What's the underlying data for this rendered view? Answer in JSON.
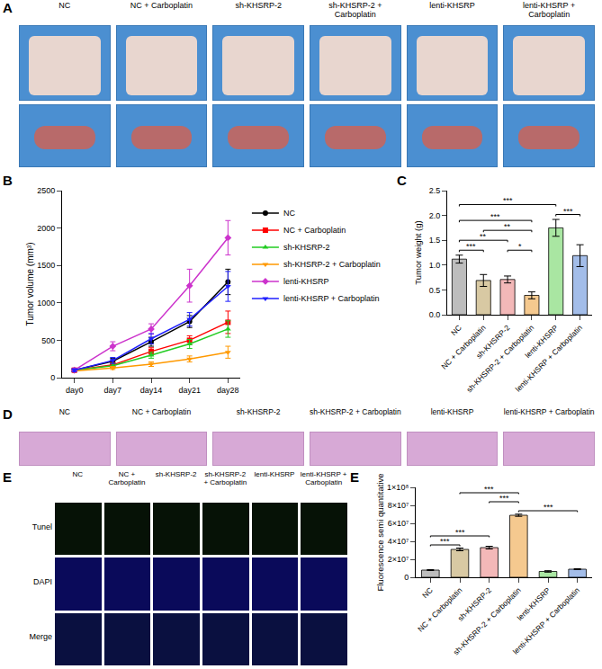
{
  "panel_A": {
    "panel": "A",
    "groups": [
      "NC",
      "NC + Carboplatin",
      "sh-KHSRP-2",
      "sh-KHSRP-2 + Carboplatin",
      "lenti-KHSRP",
      "lenti-KHSRP + Carboplatin"
    ]
  },
  "panel_D": {
    "panel": "D",
    "groups": [
      "NC",
      "NC + Carboplatin",
      "sh-KHSRP-2",
      "sh-KHSRP-2 + Carboplatin",
      "lenti-KHSRP",
      "lenti-KHSRP + Carboplatin"
    ]
  },
  "panel_E_images": {
    "panel": "E",
    "groups": [
      "NC",
      "NC + Carboplatin",
      "sh-KHSRP-2",
      "sh-KHSRP-2 + Carboplatin",
      "lenti-KHSRP",
      "lenti-KHSRP + Carboplatin"
    ],
    "rows": [
      "Tunel",
      "DAPI",
      "Merge"
    ]
  },
  "chart_data": [
    {
      "panel": "B",
      "type": "line",
      "y_label": "Tumor volume (mm³)",
      "categories": [
        "day0",
        "day7",
        "day14",
        "day21",
        "day28"
      ],
      "ylim": [
        0,
        2500
      ],
      "yticks": [
        0,
        500,
        1000,
        1500,
        2000,
        2500
      ],
      "grid": false,
      "legend": "right",
      "series": [
        {
          "name": "NC",
          "color": "#000000",
          "marker": "circle",
          "line_style": "solid",
          "values": [
            100,
            220,
            480,
            750,
            1280
          ],
          "errors": [
            20,
            40,
            60,
            80,
            170
          ]
        },
        {
          "name": "NC + Carboplatin",
          "color": "#ff0000",
          "marker": "square",
          "line_style": "solid",
          "values": [
            100,
            170,
            350,
            500,
            740
          ],
          "errors": [
            15,
            30,
            50,
            60,
            150
          ]
        },
        {
          "name": "sh-KHSRP-2",
          "color": "#22cc22",
          "marker": "triangle-up",
          "line_style": "solid",
          "values": [
            100,
            160,
            300,
            450,
            650
          ],
          "errors": [
            15,
            30,
            40,
            60,
            110
          ]
        },
        {
          "name": "sh-KHSRP-2 + Carboplatin",
          "color": "#ff9900",
          "marker": "triangle-down",
          "line_style": "solid",
          "values": [
            90,
            130,
            180,
            250,
            340
          ],
          "errors": [
            10,
            20,
            30,
            40,
            80
          ]
        },
        {
          "name": "lenti-KHSRP",
          "color": "#cc33cc",
          "marker": "diamond",
          "line_style": "solid",
          "values": [
            100,
            420,
            650,
            1230,
            1870
          ],
          "errors": [
            20,
            60,
            70,
            220,
            230
          ]
        },
        {
          "name": "lenti-KHSRP + Carboplatin",
          "color": "#1f1fff",
          "marker": "triangle-down",
          "line_style": "solid",
          "values": [
            100,
            230,
            520,
            780,
            1220
          ],
          "errors": [
            20,
            40,
            70,
            90,
            200
          ]
        }
      ]
    },
    {
      "panel": "C",
      "type": "bar",
      "y_label": "Tumor weight (g)",
      "categories": [
        "NC",
        "NC + Carboplatin",
        "sh-KHSRP-2",
        "sh-KHSRP-2 + Carboplatin",
        "lenti-KHSRP",
        "lenti-KHSRP + Carboplatin"
      ],
      "values": [
        1.12,
        0.69,
        0.71,
        0.39,
        1.75,
        1.19
      ],
      "errors": [
        0.08,
        0.12,
        0.07,
        0.07,
        0.17,
        0.22
      ],
      "colors": [
        "#bdbdbd",
        "#d8c9a3",
        "#f3b8b8",
        "#f5c98f",
        "#a9e6a2",
        "#a3bde9"
      ],
      "ylim": [
        0,
        2.5
      ],
      "yticks": [
        {
          "value": 0,
          "label": "0.0"
        },
        {
          "value": 0.5,
          "label": "0.5"
        },
        {
          "value": 1,
          "label": "1.0"
        },
        {
          "value": 1.5,
          "label": "1.5"
        },
        {
          "value": 2,
          "label": "2.0"
        },
        {
          "value": 2.5,
          "label": "2.5"
        }
      ],
      "grid": false,
      "comparisons": [
        {
          "from": 0,
          "to": 1,
          "y": 1.3,
          "label": "***"
        },
        {
          "from": 2,
          "to": 3,
          "y": 1.3,
          "label": "*"
        },
        {
          "from": 0,
          "to": 2,
          "y": 1.5,
          "label": "**"
        },
        {
          "from": 1,
          "to": 3,
          "y": 1.7,
          "label": "**"
        },
        {
          "from": 0,
          "to": 3,
          "y": 1.9,
          "label": "***"
        },
        {
          "from": 4,
          "to": 5,
          "y": 2.02,
          "label": "***"
        },
        {
          "from": 0,
          "to": 4,
          "y": 2.22,
          "label": "***"
        }
      ]
    },
    {
      "panel": "E",
      "type": "bar",
      "y_label": "Fluorescence semi quantitative",
      "categories": [
        "NC",
        "NC + Carboplatin",
        "sh-KHSRP-2",
        "sh-KHSRP-2 + Carboplatin",
        "lenti-KHSRP",
        "lenti-KHSRP + Carboplatin"
      ],
      "values": [
        8000000,
        31000000,
        33000000,
        69000000,
        6500000,
        9000000
      ],
      "errors": [
        500000,
        1500000,
        1500000,
        1200000,
        800000,
        500000
      ],
      "colors": [
        "#bdbdbd",
        "#d8c9a3",
        "#f3b8b8",
        "#f5c98f",
        "#a9e6a2",
        "#a3bde9"
      ],
      "ylim": [
        0,
        100000000
      ],
      "yticks": [
        {
          "value": 0,
          "label": "0"
        },
        {
          "value": 20000000,
          "label": "2×10⁷"
        },
        {
          "value": 40000000,
          "label": "4×10⁷"
        },
        {
          "value": 60000000,
          "label": "6×10⁷"
        },
        {
          "value": 80000000,
          "label": "8×10⁷"
        },
        {
          "value": 100000000,
          "label": "1×10⁸"
        }
      ],
      "grid": false,
      "comparisons": [
        {
          "from": 0,
          "to": 1,
          "y": 36000000,
          "label": "***"
        },
        {
          "from": 0,
          "to": 2,
          "y": 46000000,
          "label": "***"
        },
        {
          "from": 3,
          "to": 5,
          "y": 74000000,
          "label": "***"
        },
        {
          "from": 2,
          "to": 3,
          "y": 84000000,
          "label": "***"
        },
        {
          "from": 1,
          "to": 3,
          "y": 94000000,
          "label": "***"
        }
      ]
    }
  ]
}
